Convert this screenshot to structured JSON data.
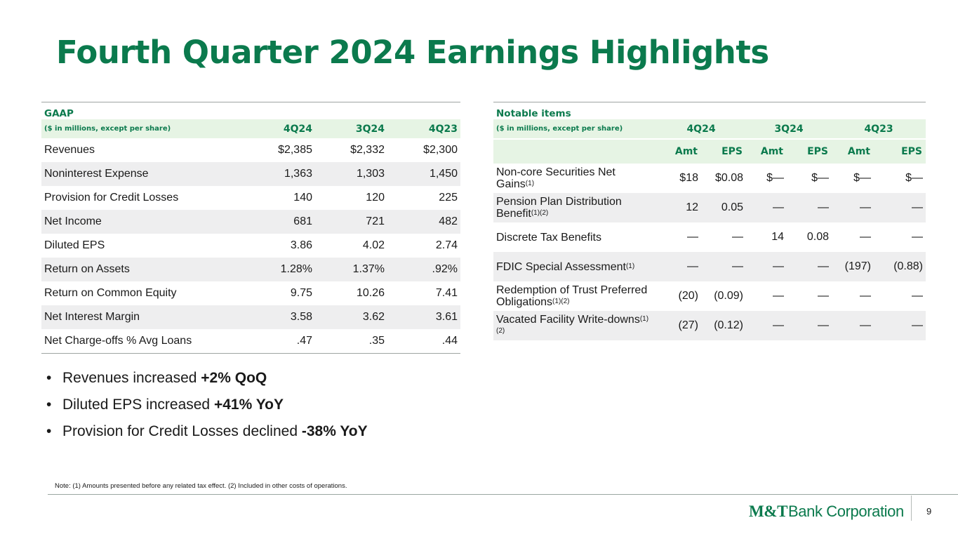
{
  "title": "Fourth Quarter 2024 Earnings Highlights",
  "gaap": {
    "section": "GAAP",
    "unit_label": "($ in millions, except per share)",
    "columns": [
      "4Q24",
      "3Q24",
      "4Q23"
    ],
    "rows": [
      {
        "label": "Revenues",
        "values": [
          "$2,385",
          "$2,332",
          "$2,300"
        ]
      },
      {
        "label": "Noninterest Expense",
        "values": [
          "1,363",
          "1,303",
          "1,450"
        ]
      },
      {
        "label": "Provision for Credit Losses",
        "values": [
          "140",
          "120",
          "225"
        ]
      },
      {
        "label": "Net Income",
        "values": [
          "681",
          "721",
          "482"
        ]
      },
      {
        "label": "Diluted EPS",
        "values": [
          "3.86",
          "4.02",
          "2.74"
        ]
      },
      {
        "label": "Return on Assets",
        "values": [
          "1.28%",
          "1.37%",
          ".92%"
        ]
      },
      {
        "label": "Return on Common Equity",
        "values": [
          "9.75",
          "10.26",
          "7.41"
        ]
      },
      {
        "label": "Net Interest Margin",
        "values": [
          "3.58",
          "3.62",
          "3.61"
        ]
      },
      {
        "label": "Net Charge-offs % Avg Loans",
        "values": [
          ".47",
          ".35",
          ".44"
        ]
      }
    ]
  },
  "notable": {
    "section": "Notable items",
    "unit_label": "($ in millions, except per share)",
    "columns": [
      "4Q24",
      "3Q24",
      "4Q23"
    ],
    "subcolumns": [
      "Amt",
      "EPS",
      "Amt",
      "EPS",
      "Amt",
      "EPS"
    ],
    "rows": [
      {
        "label": "Non-core Securities Net Gains",
        "sup": "(1)",
        "values": [
          "$18",
          "$0.08",
          "$—",
          "$—",
          "$—",
          "$—"
        ]
      },
      {
        "label": "Pension Plan Distribution Benefit",
        "sup": "(1)(2)",
        "values": [
          "12",
          "0.05",
          "—",
          "—",
          "—",
          "—"
        ]
      },
      {
        "label": "Discrete Tax Benefits",
        "sup": "",
        "values": [
          "—",
          "—",
          "14",
          "0.08",
          "—",
          "—"
        ]
      },
      {
        "label": "FDIC Special Assessment",
        "sup": "(1)",
        "values": [
          "—",
          "—",
          "—",
          "—",
          "(197)",
          "(0.88)"
        ]
      },
      {
        "label": "Redemption of Trust Preferred Obligations",
        "sup": "(1)(2)",
        "values": [
          "(20)",
          "(0.09)",
          "—",
          "—",
          "—",
          "—"
        ]
      },
      {
        "label": "Vacated Facility Write-downs",
        "sup": "(1)(2)",
        "values": [
          "(27)",
          "(0.12)",
          "—",
          "—",
          "—",
          "—"
        ]
      }
    ]
  },
  "bullets": [
    {
      "text": "Revenues increased ",
      "bold": "+2% QoQ"
    },
    {
      "text": "Diluted EPS increased ",
      "bold": "+41% YoY"
    },
    {
      "text": "Provision for Credit Losses declined ",
      "bold": "-38% YoY"
    }
  ],
  "bullet_symbol": "•",
  "note": "Note: (1) Amounts presented before any related tax effect. (2) Included in other costs of operations.",
  "logo": {
    "mark": "M&T",
    "name": "Bank Corporation"
  },
  "page_number": "9",
  "colors": {
    "brand_green": "#0b7a4d",
    "header_fill": "#e6f4e4",
    "row_shade": "#eeeeef"
  }
}
